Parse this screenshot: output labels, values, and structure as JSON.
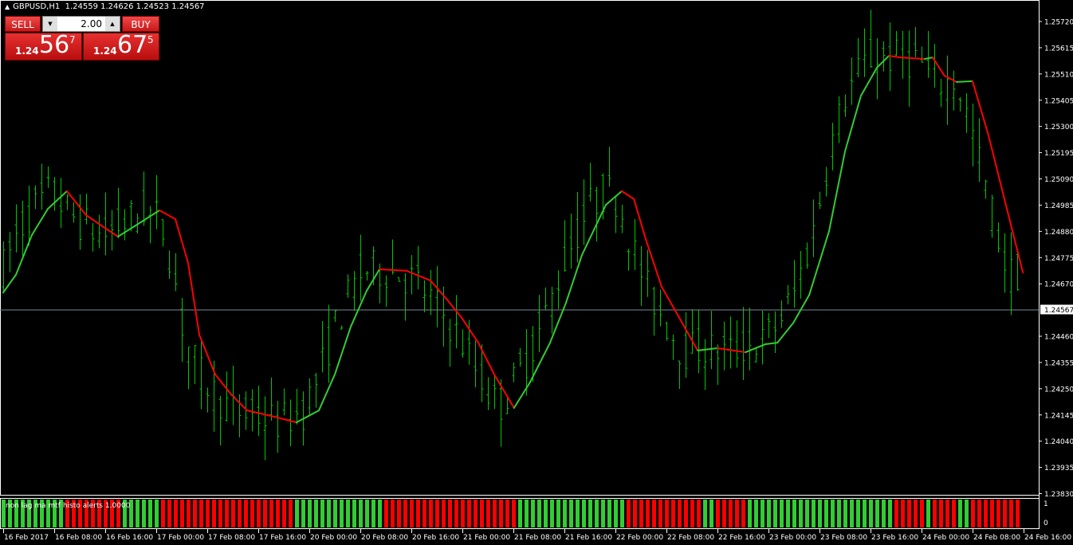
{
  "header": {
    "symbol_timeframe": "GBPUSD,H1",
    "ohlc": "1.24559 1.24626 1.24523 1.24567"
  },
  "trade_panel": {
    "sell_label": "SELL",
    "buy_label": "BUY",
    "lot_size": "2.00",
    "sell_price": {
      "prefix": "1.24",
      "big": "56",
      "sup": "7"
    },
    "buy_price": {
      "prefix": "1.24",
      "big": "67",
      "sup": "5"
    }
  },
  "colors": {
    "background": "#000000",
    "bars": "#00c800",
    "ma_up": "#32cd32",
    "ma_down": "#ff0000",
    "price_line": "#778899",
    "axis": "#ffffff"
  },
  "chart_data": {
    "type": "line",
    "symbol": "GBPUSD",
    "timeframe": "H1",
    "bar_style": "ohlc-bars",
    "grid": false,
    "current_price": "1.24567",
    "ylim": [
      1.2383,
      1.2572
    ],
    "y_ticks": [
      "1.25720",
      "1.25615",
      "1.25510",
      "1.25405",
      "1.25300",
      "1.25195",
      "1.25090",
      "1.24985",
      "1.24880",
      "1.24775",
      "1.24670",
      "1.24567",
      "1.24460",
      "1.24355",
      "1.24250",
      "1.24145",
      "1.24040",
      "1.23935",
      "1.23830"
    ],
    "x_ticks": [
      "16 Feb 2017",
      "16 Feb 08:00",
      "16 Feb 16:00",
      "17 Feb 00:00",
      "17 Feb 08:00",
      "17 Feb 16:00",
      "20 Feb 00:00",
      "20 Feb 08:00",
      "20 Feb 16:00",
      "21 Feb 00:00",
      "21 Feb 08:00",
      "21 Feb 16:00",
      "22 Feb 00:00",
      "22 Feb 08:00",
      "22 Feb 16:00",
      "23 Feb 00:00",
      "23 Feb 08:00",
      "23 Feb 16:00",
      "24 Feb 00:00",
      "24 Feb 08:00",
      "24 Feb 16:00"
    ],
    "bars_per_tick": 8,
    "ma_line_points": [
      [
        0,
        1.24635
      ],
      [
        2,
        1.24706
      ],
      [
        4.5,
        1.24865
      ],
      [
        7,
        1.2497
      ],
      [
        10,
        1.25041
      ],
      [
        13,
        1.24945
      ],
      [
        15.75,
        1.24897
      ],
      [
        18,
        1.24859
      ],
      [
        20.75,
        1.24903
      ],
      [
        24.5,
        1.24964
      ],
      [
        27,
        1.24929
      ],
      [
        29,
        1.24753
      ],
      [
        30.75,
        1.24466
      ],
      [
        33.25,
        1.24307
      ],
      [
        35.75,
        1.24227
      ],
      [
        38.25,
        1.24163
      ],
      [
        42,
        1.24141
      ],
      [
        46,
        1.24115
      ],
      [
        49.5,
        1.24163
      ],
      [
        52,
        1.24307
      ],
      [
        54.5,
        1.24498
      ],
      [
        57,
        1.24642
      ],
      [
        59,
        1.24728
      ],
      [
        63.25,
        1.24722
      ],
      [
        67,
        1.24683
      ],
      [
        69.5,
        1.2461
      ],
      [
        72,
        1.2453
      ],
      [
        74.5,
        1.24434
      ],
      [
        77,
        1.24307
      ],
      [
        80.1,
        1.24173
      ],
      [
        82.6,
        1.24275
      ],
      [
        85.75,
        1.24434
      ],
      [
        88.25,
        1.24594
      ],
      [
        90.75,
        1.24785
      ],
      [
        94.5,
        1.24986
      ],
      [
        97,
        1.25041
      ],
      [
        98.9,
        1.25009
      ],
      [
        100.75,
        1.24849
      ],
      [
        103.25,
        1.24658
      ],
      [
        105.75,
        1.24546
      ],
      [
        108.9,
        1.24403
      ],
      [
        112,
        1.24412
      ],
      [
        116.4,
        1.24396
      ],
      [
        119.5,
        1.24428
      ],
      [
        121.4,
        1.24434
      ],
      [
        123.9,
        1.24514
      ],
      [
        126.4,
        1.24626
      ],
      [
        129.5,
        1.24881
      ],
      [
        132,
        1.252
      ],
      [
        134.5,
        1.25423
      ],
      [
        137,
        1.25535
      ],
      [
        138.9,
        1.25583
      ],
      [
        140.75,
        1.25576
      ],
      [
        144.5,
        1.2557
      ],
      [
        145.75,
        1.25576
      ],
      [
        147.6,
        1.25503
      ],
      [
        149.5,
        1.25478
      ],
      [
        152,
        1.25481
      ],
      [
        154.5,
        1.25264
      ],
      [
        157,
        1.25009
      ],
      [
        159.9,
        1.24715
      ]
    ],
    "indicator": {
      "label": "non lag ma mtf histo alerts 1.0000",
      "type": "histogram",
      "ylim": [
        0,
        1
      ],
      "y_ticks": [
        "1",
        "0"
      ],
      "rule": "green when MA rising, red when falling"
    }
  }
}
